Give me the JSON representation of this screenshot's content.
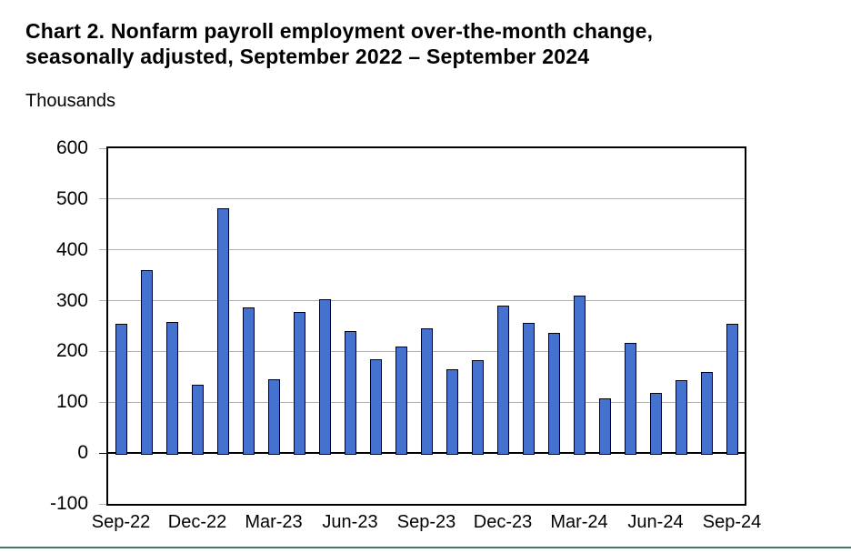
{
  "page": {
    "background_color": "#ffffff",
    "bottom_rule_color": "#467660"
  },
  "chart_data": {
    "type": "bar",
    "title": "Chart 2. Nonfarm payroll employment over-the-month change,\nseasonally adjusted, September 2022 – September 2024",
    "ylabel": "Thousands",
    "xlabel": "",
    "categories": [
      "Sep-22",
      "Oct-22",
      "Nov-22",
      "Dec-22",
      "Jan-23",
      "Feb-23",
      "Mar-23",
      "Apr-23",
      "May-23",
      "Jun-23",
      "Jul-23",
      "Aug-23",
      "Sep-23",
      "Oct-23",
      "Nov-23",
      "Dec-23",
      "Jan-24",
      "Feb-24",
      "Mar-24",
      "Apr-24",
      "May-24",
      "Jun-24",
      "Jul-24",
      "Aug-24",
      "Sep-24"
    ],
    "values": [
      255,
      360,
      258,
      135,
      482,
      287,
      145,
      278,
      303,
      240,
      184,
      210,
      245,
      165,
      182,
      290,
      256,
      236,
      310,
      108,
      216,
      118,
      144,
      159,
      254
    ],
    "x_tick_labels": [
      "Sep-22",
      "Dec-22",
      "Mar-23",
      "Jun-23",
      "Sep-23",
      "Dec-23",
      "Mar-24",
      "Jun-24",
      "Sep-24"
    ],
    "x_tick_every": 3,
    "ylim": [
      -100,
      600
    ],
    "y_ticks": [
      600,
      500,
      400,
      300,
      200,
      100,
      0,
      -100
    ],
    "grid": true,
    "legend": "none",
    "bar_color": "#4472CE",
    "bar_border_color": "#000000",
    "gridline_color": "#b0b0b0",
    "axis_color": "#000000"
  }
}
